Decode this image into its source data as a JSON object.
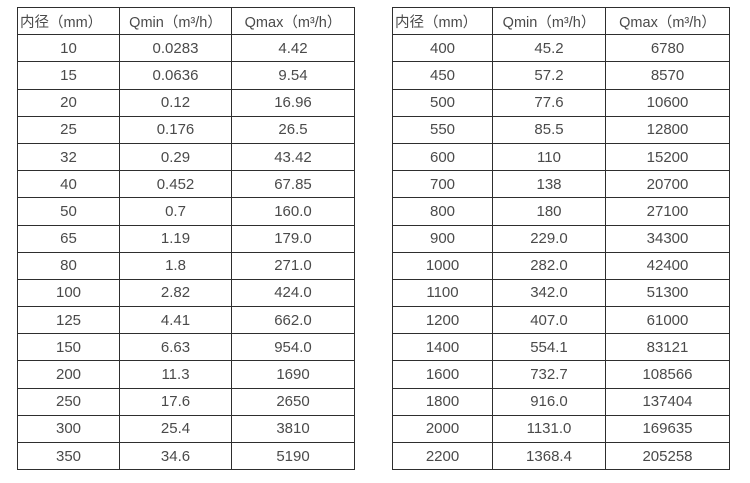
{
  "page": {
    "background": "#ffffff",
    "text_color": "#4a4a4a",
    "border_color": "#2e2e2e"
  },
  "tables": [
    {
      "name": "flow-rate-table-small-diameters",
      "headers": [
        "内径（mm）",
        "Qmin（m³/h）",
        "Qmax（m³/h）"
      ],
      "rows": [
        [
          "10",
          "0.0283",
          "4.42"
        ],
        [
          "15",
          "0.0636",
          "9.54"
        ],
        [
          "20",
          "0.12",
          "16.96"
        ],
        [
          "25",
          "0.176",
          "26.5"
        ],
        [
          "32",
          "0.29",
          "43.42"
        ],
        [
          "40",
          "0.452",
          "67.85"
        ],
        [
          "50",
          "0.7",
          "160.0"
        ],
        [
          "65",
          "1.19",
          "179.0"
        ],
        [
          "80",
          "1.8",
          "271.0"
        ],
        [
          "100",
          "2.82",
          "424.0"
        ],
        [
          "125",
          "4.41",
          "662.0"
        ],
        [
          "150",
          "6.63",
          "954.0"
        ],
        [
          "200",
          "11.3",
          "1690"
        ],
        [
          "250",
          "17.6",
          "2650"
        ],
        [
          "300",
          "25.4",
          "3810"
        ],
        [
          "350",
          "34.6",
          "5190"
        ]
      ]
    },
    {
      "name": "flow-rate-table-large-diameters",
      "headers": [
        "内径（mm）",
        "Qmin（m³/h）",
        "Qmax（m³/h）"
      ],
      "rows": [
        [
          "400",
          "45.2",
          "6780"
        ],
        [
          "450",
          "57.2",
          "8570"
        ],
        [
          "500",
          "77.6",
          "10600"
        ],
        [
          "550",
          "85.5",
          "12800"
        ],
        [
          "600",
          "110",
          "15200"
        ],
        [
          "700",
          "138",
          "20700"
        ],
        [
          "800",
          "180",
          "27100"
        ],
        [
          "900",
          "229.0",
          "34300"
        ],
        [
          "1000",
          "282.0",
          "42400"
        ],
        [
          "1100",
          "342.0",
          "51300"
        ],
        [
          "1200",
          "407.0",
          "61000"
        ],
        [
          "1400",
          "554.1",
          "83121"
        ],
        [
          "1600",
          "732.7",
          "108566"
        ],
        [
          "1800",
          "916.0",
          "137404"
        ],
        [
          "2000",
          "1131.0",
          "169635"
        ],
        [
          "2200",
          "1368.4",
          "205258"
        ]
      ]
    }
  ]
}
